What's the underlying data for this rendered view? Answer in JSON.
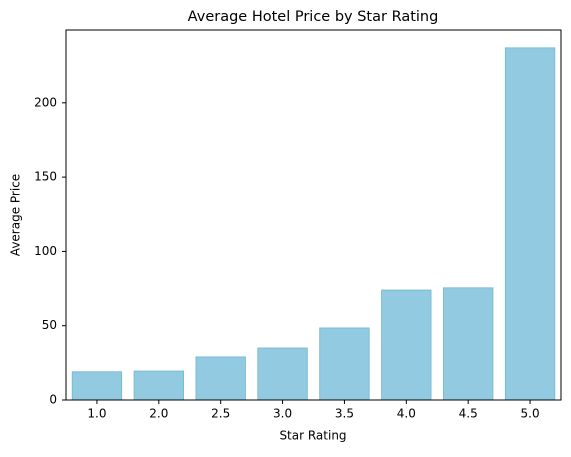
{
  "chart_data": {
    "type": "bar",
    "title": "Average Hotel Price by Star Rating",
    "x_label": "Star Rating",
    "y_label": "Average Price",
    "categories": [
      "1.0",
      "2.0",
      "2.5",
      "3.0",
      "3.5",
      "4.0",
      "4.5",
      "5.0"
    ],
    "values": [
      19,
      19.5,
      29,
      35,
      48.5,
      74,
      75.5,
      237
    ],
    "color": "#92cae1",
    "ylim": [
      0,
      249
    ],
    "yticks": [
      0,
      50,
      100,
      150,
      200
    ],
    "grid": false
  }
}
